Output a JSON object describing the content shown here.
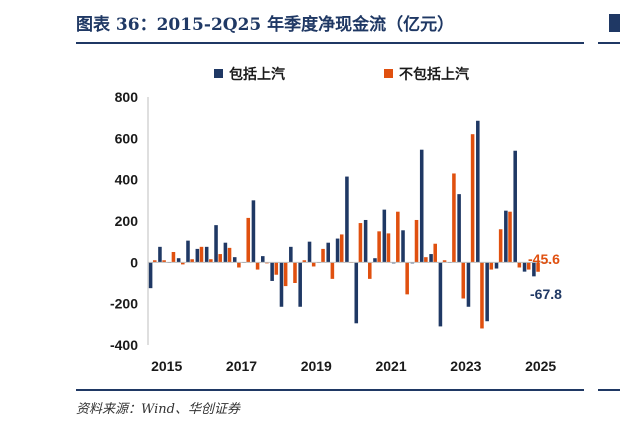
{
  "title": "图表 36：2015-2Q25 年季度净现金流（亿元）",
  "source": "资料来源：Wind、华创证券",
  "colors": {
    "series1": "#1f3864",
    "series2": "#e0500f",
    "accent": "#1f3864"
  },
  "chart_data": {
    "type": "bar",
    "title": "图表 36：2015-2Q25 年季度净现金流（亿元）",
    "xlabel": "",
    "ylabel": "",
    "ylim": [
      -400,
      800
    ],
    "yticks": [
      "800",
      "600",
      "400",
      "200",
      "0",
      "-200",
      "-400"
    ],
    "xticks": [
      "2015",
      "2017",
      "2019",
      "2021",
      "2023",
      "2025"
    ],
    "grid": false,
    "legend": "top-center",
    "categories": [
      "1Q15",
      "2Q15",
      "3Q15",
      "4Q15",
      "1Q16",
      "2Q16",
      "3Q16",
      "4Q16",
      "1Q17",
      "2Q17",
      "3Q17",
      "4Q17",
      "1Q18",
      "2Q18",
      "3Q18",
      "4Q18",
      "1Q19",
      "2Q19",
      "3Q19",
      "4Q19",
      "1Q20",
      "2Q20",
      "3Q20",
      "4Q20",
      "1Q21",
      "2Q21",
      "3Q21",
      "4Q21",
      "1Q22",
      "2Q22",
      "3Q22",
      "4Q22",
      "1Q23",
      "2Q23",
      "3Q23",
      "4Q23",
      "1Q24",
      "2Q24",
      "3Q24",
      "4Q24",
      "1Q25",
      "2Q25"
    ],
    "series": [
      {
        "name": "包括上汽",
        "values": [
          -125,
          75,
          0,
          20,
          105,
          65,
          75,
          180,
          95,
          25,
          0,
          300,
          30,
          -90,
          -215,
          75,
          -215,
          100,
          0,
          95,
          115,
          415,
          -295,
          205,
          20,
          255,
          -5,
          155,
          -5,
          545,
          40,
          -310,
          0,
          330,
          -215,
          685,
          -285,
          -30,
          250,
          540,
          -45,
          -67.8
        ]
      },
      {
        "name": "不包括上汽",
        "values": [
          10,
          10,
          50,
          -10,
          15,
          75,
          15,
          40,
          70,
          -25,
          215,
          -35,
          -5,
          -60,
          -115,
          -100,
          10,
          -20,
          65,
          -80,
          135,
          0,
          190,
          -80,
          150,
          140,
          245,
          -155,
          205,
          25,
          90,
          10,
          430,
          -175,
          620,
          -320,
          -35,
          160,
          245,
          -25,
          -35,
          -45.6
        ]
      }
    ],
    "annotations": [
      "-45.6",
      "-67.8"
    ]
  }
}
